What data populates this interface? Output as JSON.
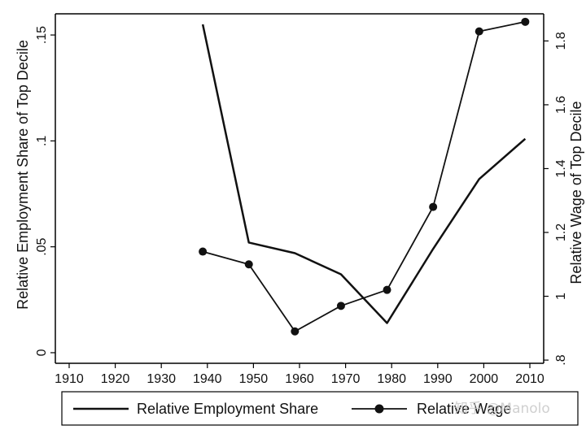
{
  "chart_data": {
    "type": "line",
    "title": "",
    "x": [
      1939,
      1949,
      1959,
      1969,
      1979,
      1989,
      1999,
      2009
    ],
    "xlim": [
      1907,
      2013
    ],
    "xticks": [
      1910,
      1920,
      1930,
      1940,
      1950,
      1960,
      1970,
      1980,
      1990,
      2000,
      2010
    ],
    "ylabel_left": "Relative Employment Share of Top Decile",
    "ylim_left": [
      -0.005,
      0.16
    ],
    "yticks_left": [
      0,
      0.05,
      0.1,
      0.15
    ],
    "ytick_labels_left": [
      "0",
      ".05",
      ".1",
      ".15"
    ],
    "ylabel_right": "Relative Wage of Top Decile",
    "ylim_right": [
      0.79,
      1.885
    ],
    "yticks_right": [
      0.8,
      1.0,
      1.2,
      1.4,
      1.6,
      1.8
    ],
    "ytick_labels_right": [
      ".8",
      "1",
      "1.2",
      "1.4",
      "1.6",
      "1.8"
    ],
    "grid": false,
    "legend_position": "bottom",
    "series": [
      {
        "name": "Relative Employment Share",
        "axis": "left",
        "marker": "none",
        "values": [
          0.155,
          0.052,
          0.047,
          0.037,
          0.014,
          0.049,
          0.082,
          0.101
        ]
      },
      {
        "name": "Relative Wage",
        "axis": "right",
        "marker": "circle",
        "values": [
          1.14,
          1.1,
          0.89,
          0.97,
          1.02,
          1.28,
          1.83,
          1.86
        ]
      }
    ]
  },
  "watermark": "知乎 @Manolo",
  "colors": {
    "line": "#111111",
    "axis": "#000000",
    "background": "#ffffff"
  }
}
